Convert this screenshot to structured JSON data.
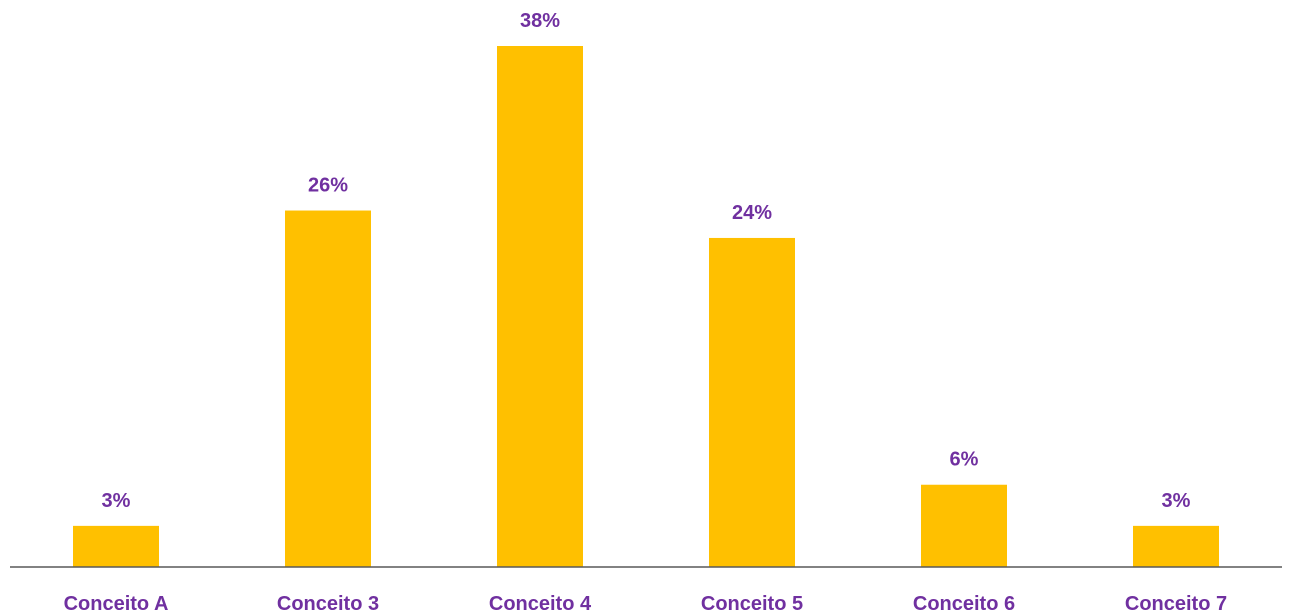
{
  "chart_data": {
    "type": "bar",
    "categories": [
      "Conceito A",
      "Conceito 3",
      "Conceito 4",
      "Conceito 5",
      "Conceito 6",
      "Conceito 7"
    ],
    "values": [
      3,
      26,
      38,
      24,
      6,
      3
    ],
    "value_labels": [
      "3%",
      "26%",
      "38%",
      "24%",
      "6%",
      "3%"
    ],
    "title": "",
    "xlabel": "",
    "ylabel": "",
    "ylim": [
      0,
      40
    ],
    "grid": false,
    "legend": "none",
    "colors": {
      "bar": "#FFC000",
      "label": "#7030A0",
      "axis": "#595959"
    }
  }
}
